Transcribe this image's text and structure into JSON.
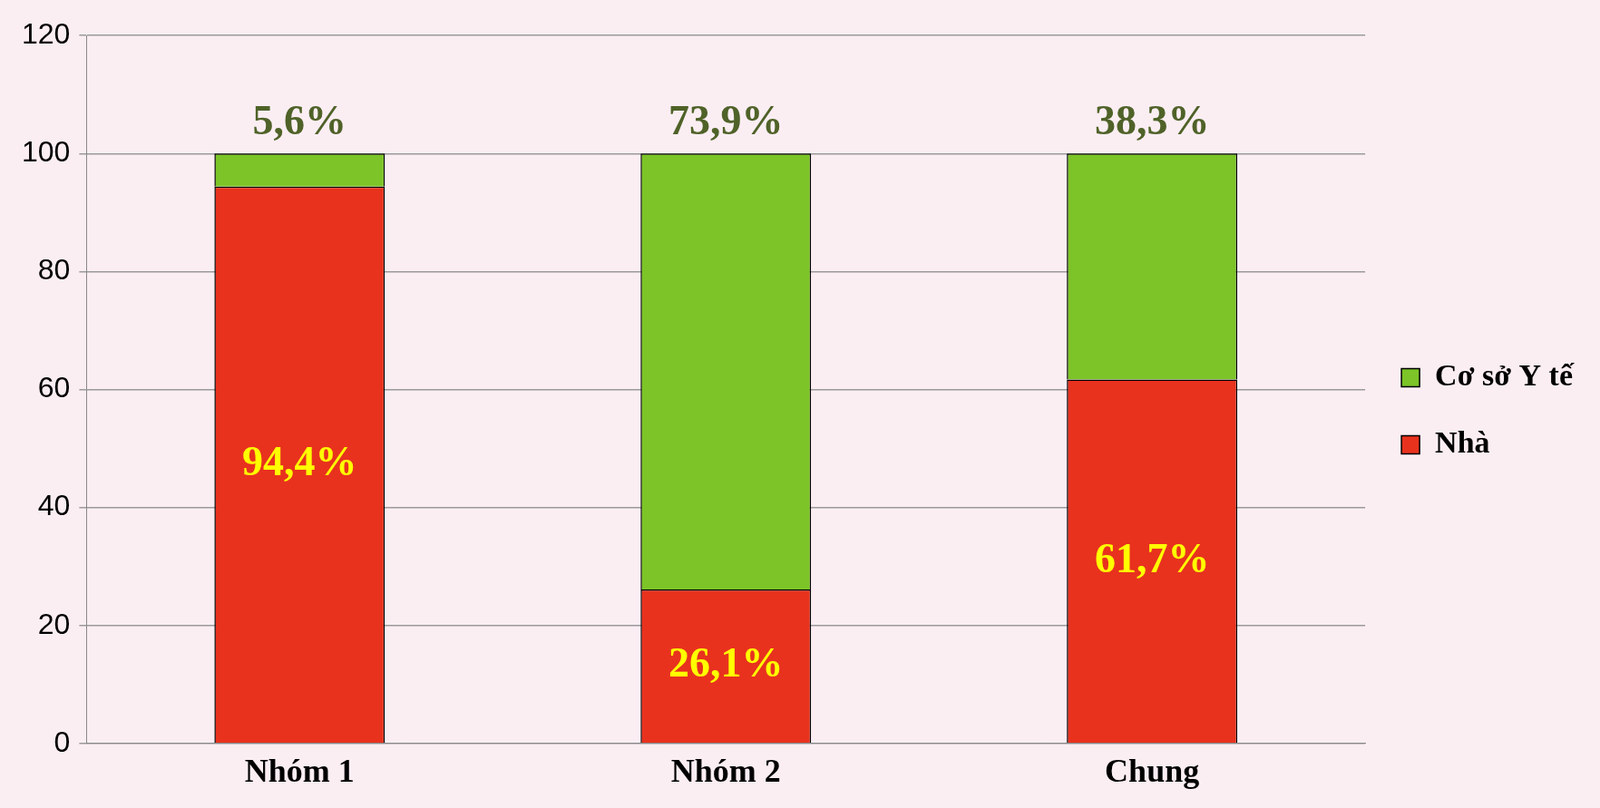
{
  "chart_data": {
    "type": "bar",
    "stacked": true,
    "data_labels": true,
    "grid": true,
    "legend": "right",
    "categories": [
      "Nhóm 1",
      "Nhóm 2",
      "Chung"
    ],
    "ylim": [
      0,
      120
    ],
    "yticks": [
      0,
      20,
      40,
      60,
      80,
      100,
      120
    ],
    "series": [
      {
        "name": "Nhà",
        "color": "#e8321e",
        "values": [
          94.4,
          26.1,
          61.7
        ],
        "value_labels": [
          "94,4%",
          "26,1%",
          "61,7%"
        ]
      },
      {
        "name": "Cơ sở Y tế",
        "color": "#7cc427",
        "values": [
          5.6,
          73.9,
          38.3
        ],
        "value_labels": [
          "5,6%",
          "73,9%",
          "38,3%"
        ]
      }
    ]
  }
}
